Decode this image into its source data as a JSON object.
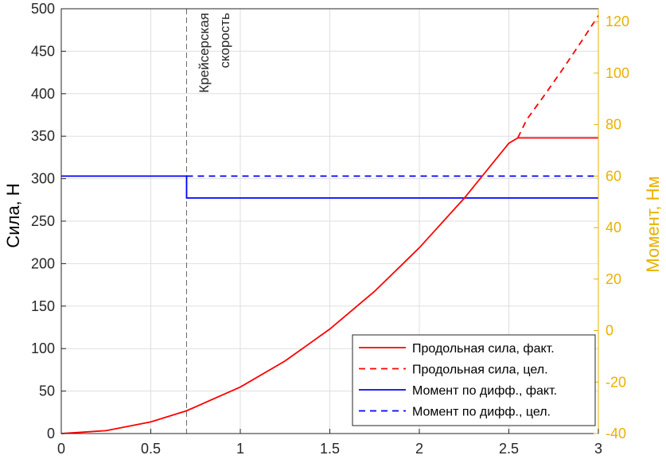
{
  "chart_data": {
    "type": "line",
    "xlim": [
      0,
      3
    ],
    "x_ticks": [
      "0",
      "0.5",
      "1",
      "1.5",
      "2",
      "2.5",
      "3"
    ],
    "y_left": {
      "label": "Сила, Н",
      "lim": [
        0,
        500
      ],
      "ticks": [
        "0",
        "50",
        "100",
        "150",
        "200",
        "250",
        "300",
        "350",
        "400",
        "450",
        "500"
      ]
    },
    "y_right": {
      "label": "Момент, Нм",
      "lim": [
        -40,
        125
      ],
      "ticks": [
        "-40",
        "-20",
        "0",
        "20",
        "40",
        "60",
        "80",
        "100",
        "120"
      ],
      "color": "#e8b100"
    },
    "grid": true,
    "annotation": {
      "text_line1": "Крейсерская",
      "text_line2": "скорость",
      "x": 0.7
    },
    "legend_position": "bottom-right",
    "series": [
      {
        "name": "Продольная сила, факт.",
        "axis": "left",
        "color": "#ff0000",
        "style": "solid",
        "x": [
          0,
          0.25,
          0.5,
          0.7,
          1.0,
          1.25,
          1.5,
          1.75,
          2.0,
          2.25,
          2.5,
          2.55,
          2.6,
          2.8,
          3.0
        ],
        "y": [
          0,
          3.4,
          13.7,
          26.8,
          54.7,
          85.4,
          123.0,
          167.4,
          218.7,
          276.8,
          341.7,
          348.0,
          348.0,
          348.0,
          348.0
        ]
      },
      {
        "name": "Продольная сила, цел.",
        "axis": "left",
        "color": "#ff0000",
        "style": "dashed",
        "x": [
          2.55,
          2.6,
          2.7,
          2.8,
          2.9,
          3.0
        ],
        "y": [
          348.0,
          369.6,
          398.6,
          428.6,
          459.8,
          492.0
        ]
      },
      {
        "name": "Момент по дифф., факт.",
        "axis": "right",
        "color": "#0000ff",
        "style": "solid",
        "x": [
          0,
          0.7,
          0.7,
          3.0
        ],
        "y": [
          60,
          60,
          51.5,
          51.5
        ]
      },
      {
        "name": "Момент по дифф., цел.",
        "axis": "right",
        "color": "#0000ff",
        "style": "dashed",
        "x": [
          0.7,
          3.0
        ],
        "y": [
          60,
          60
        ]
      }
    ]
  }
}
